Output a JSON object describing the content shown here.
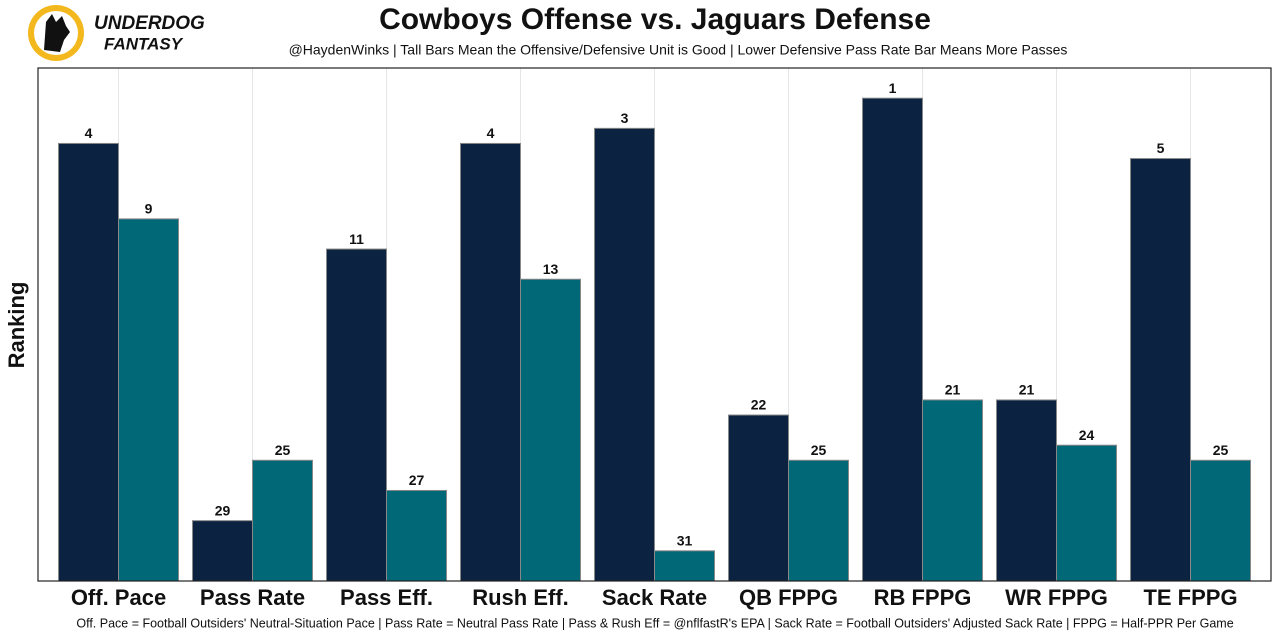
{
  "chart_data": {
    "type": "bar",
    "title": "Cowboys Offense vs. Jaguars Defense",
    "subtitle": "@HaydenWinks | Tall Bars Mean the Offensive/Defensive Unit is Good | Lower Defensive Pass Rate Bar Means More Passes",
    "y_label": "Ranking",
    "footnote": "Off. Pace = Football Outsiders' Neutral-Situation Pace | Pass Rate = Neutral Pass Rate | Pass & Rush Eff = @nflfastR's EPA | Sack Rate = Football Outsiders' Adjusted Sack Rate | FPPG = Half-PPR Per Game",
    "logo": [
      "UNDERDOG",
      "FANTASY"
    ],
    "categories": [
      "Off. Pace",
      "Pass Rate",
      "Pass Eff.",
      "Rush Eff.",
      "Sack Rate",
      "QB FPPG",
      "RB FPPG",
      "WR FPPG",
      "TE FPPG"
    ],
    "series": [
      {
        "color": "#0b2241",
        "values": [
          4,
          29,
          11,
          4,
          3,
          22,
          1,
          21,
          5
        ]
      },
      {
        "color": "#006877",
        "values": [
          9,
          25,
          27,
          13,
          31,
          25,
          21,
          24,
          25
        ]
      }
    ],
    "ylim": [
      33,
      -1
    ],
    "grid": true
  }
}
